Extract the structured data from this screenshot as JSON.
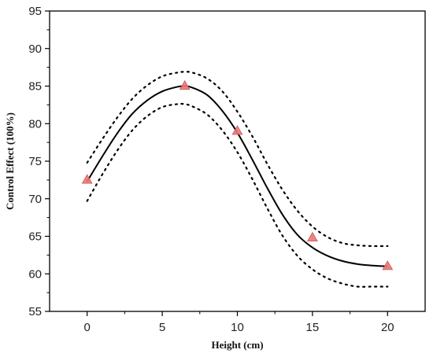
{
  "chart_data": {
    "type": "line",
    "title": "",
    "xlabel": "Height (cm)",
    "ylabel": "Control Effect (100%)",
    "xlim": [
      -2.5,
      22.5
    ],
    "ylim": [
      55,
      95
    ],
    "x_ticks": [
      0,
      5,
      10,
      15,
      20
    ],
    "y_ticks": [
      55,
      60,
      65,
      70,
      75,
      80,
      85,
      90,
      95
    ],
    "grid": false,
    "legend": "none",
    "series": [
      {
        "role": "data-points",
        "marker": "triangle",
        "color": "#e87878",
        "x": [
          0,
          6.5,
          10,
          15,
          20
        ],
        "y": [
          72.5,
          85,
          79,
          64.8,
          61
        ]
      },
      {
        "role": "fit-curve",
        "style": "solid",
        "color": "#000000",
        "x": [
          0,
          1,
          2,
          3,
          4,
          5,
          6,
          6.5,
          7,
          8,
          9,
          10,
          11,
          12,
          13,
          14,
          15,
          16,
          17,
          18,
          19,
          20
        ],
        "y": [
          72.3,
          75.6,
          78.7,
          81.3,
          83.1,
          84.3,
          84.9,
          85.0,
          84.8,
          83.8,
          81.7,
          78.8,
          75.2,
          71.4,
          67.9,
          65.2,
          63.5,
          62.4,
          61.7,
          61.3,
          61.1,
          61.0
        ]
      },
      {
        "role": "upper-confidence-band",
        "style": "dotted",
        "color": "#000000",
        "x": [
          0,
          1,
          2,
          3,
          4,
          5,
          6,
          6.5,
          7,
          8,
          9,
          10,
          11,
          12,
          13,
          14,
          15,
          16,
          17,
          18,
          19,
          20
        ],
        "y": [
          74.8,
          77.9,
          80.8,
          83.3,
          85.1,
          86.3,
          86.8,
          86.9,
          86.8,
          86.0,
          84.3,
          81.6,
          78.3,
          74.6,
          71.2,
          68.4,
          66.3,
          64.9,
          64.1,
          63.8,
          63.7,
          63.7
        ]
      },
      {
        "role": "lower-confidence-band",
        "style": "dotted",
        "color": "#000000",
        "x": [
          0,
          1,
          2,
          3,
          4,
          5,
          6,
          6.5,
          7,
          8,
          9,
          10,
          11,
          12,
          13,
          14,
          15,
          16,
          17,
          18,
          19,
          20
        ],
        "y": [
          69.7,
          73.2,
          76.4,
          79.1,
          81.0,
          82.2,
          82.6,
          82.6,
          82.3,
          81.2,
          79.1,
          76.2,
          72.6,
          68.7,
          65.1,
          62.4,
          60.6,
          59.4,
          58.7,
          58.3,
          58.3,
          58.3
        ]
      }
    ]
  }
}
